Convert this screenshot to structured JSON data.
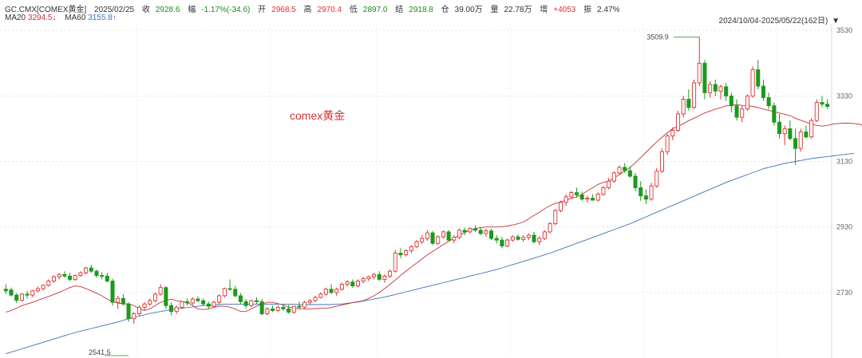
{
  "header": {
    "symbol": "GC.CMX[COMEX黄金]",
    "date": "2025/02/25",
    "close_label": "收",
    "close": "2928.6",
    "amplitude_label": "幅",
    "change": "-1.17%(-34.6)",
    "open_label": "开",
    "open": "2968.5",
    "high_label": "高",
    "high": "2970.4",
    "low_label": "低",
    "low": "2897.0",
    "settle_label": "结",
    "settle": "2918.8",
    "oi_label": "仓",
    "oi": "39.00万",
    "volume_label": "量",
    "volume": "22.78万",
    "increase_label": "增",
    "increase": "+4053",
    "swing_label": "振",
    "swing": "2.47%",
    "ma20_label": "MA20",
    "ma20": "3294.5↓",
    "ma60_label": "MA60",
    "ma60": "3155.8↑",
    "range": "2024/10/04-2025/05/22(162日)"
  },
  "colors": {
    "up": "#e03131",
    "down": "#1c9a1c",
    "ma20": "#c8323a",
    "ma60": "#3f72b8"
  },
  "chart_data": {
    "type": "candlestick",
    "ylim": [
      2530,
      3550
    ],
    "yticks": [
      "3530",
      "3330",
      "3130",
      "2930",
      "2730"
    ],
    "ytick_values": [
      3530,
      3330,
      3130,
      2930,
      2730
    ],
    "annotation": "comex黄金",
    "max_label": "3509.9",
    "min_label": "2541.5",
    "ma20_values": [
      2670,
      2675,
      2682,
      2690,
      2695,
      2700,
      2706,
      2712,
      2718,
      2724,
      2730,
      2738,
      2745,
      2750,
      2748,
      2742,
      2735,
      2728,
      2720,
      2710,
      2702,
      2698,
      2695,
      2695,
      2690,
      2680,
      2675,
      2680,
      2690,
      2700,
      2705,
      2710,
      2705,
      2702,
      2700,
      2690,
      2680,
      2678,
      2680,
      2685,
      2688,
      2688,
      2685,
      2680,
      2672,
      2672,
      2680,
      2688,
      2695,
      2700,
      2700,
      2696,
      2692,
      2685,
      2683,
      2680,
      2680,
      2680,
      2681,
      2682,
      2682,
      2684,
      2688,
      2692,
      2695,
      2699,
      2702,
      2705,
      2712,
      2720,
      2730,
      2742,
      2755,
      2768,
      2782,
      2795,
      2808,
      2820,
      2832,
      2845,
      2855,
      2866,
      2876,
      2886,
      2896,
      2905,
      2913,
      2920,
      2925,
      2928,
      2930,
      2930,
      2930,
      2931,
      2933,
      2936,
      2940,
      2945,
      2955,
      2965,
      2975,
      2986,
      2995,
      3002,
      3007,
      3012,
      3017,
      3022,
      3030,
      3040,
      3050,
      3060,
      3066,
      3070,
      3080,
      3090,
      3100,
      3112,
      3126,
      3142,
      3158,
      3174,
      3190,
      3204,
      3218,
      3230,
      3238,
      3245,
      3255,
      3262,
      3270,
      3278,
      3284,
      3290,
      3294,
      3300,
      3302,
      3304,
      3301,
      3301,
      3298,
      3295,
      3290,
      3286,
      3282,
      3278,
      3274,
      3270,
      3262,
      3256,
      3250,
      3244,
      3240,
      3238,
      3240,
      3244,
      3246,
      3247,
      3247,
      3246,
      3244,
      3238,
      3232,
      3226,
      3222,
      3220,
      3218
    ],
    "ma60_values": [
      2543,
      2548,
      2553,
      2558,
      2563,
      2568,
      2573,
      2578,
      2583,
      2588,
      2593,
      2598,
      2603,
      2608,
      2612,
      2616,
      2620,
      2624,
      2628,
      2632,
      2636,
      2640,
      2645,
      2650,
      2654,
      2658,
      2662,
      2666,
      2669,
      2672,
      2675,
      2678,
      2680,
      2682,
      2684,
      2686,
      2688,
      2690,
      2691,
      2692,
      2693,
      2694,
      2694,
      2694,
      2694,
      2694,
      2694,
      2694,
      2694,
      2694,
      2694,
      2694,
      2694,
      2694,
      2694,
      2693,
      2693,
      2693,
      2693,
      2693,
      2693,
      2693,
      2694,
      2695,
      2697,
      2699,
      2701,
      2704,
      2707,
      2710,
      2713,
      2716,
      2720,
      2724,
      2728,
      2732,
      2736,
      2740,
      2744,
      2748,
      2752,
      2756,
      2760,
      2764,
      2768,
      2772,
      2776,
      2780,
      2784,
      2788,
      2792,
      2796,
      2800,
      2805,
      2810,
      2815,
      2820,
      2825,
      2830,
      2835,
      2840,
      2845,
      2850,
      2856,
      2862,
      2868,
      2874,
      2880,
      2886,
      2892,
      2898,
      2904,
      2910,
      2916,
      2922,
      2928,
      2934,
      2940,
      2947,
      2954,
      2961,
      2968,
      2975,
      2982,
      2989,
      2996,
      3003,
      3010,
      3017,
      3024,
      3031,
      3038,
      3045,
      3052,
      3059,
      3066,
      3072,
      3078,
      3084,
      3090,
      3096,
      3102,
      3108,
      3112,
      3116,
      3120,
      3124,
      3127,
      3130,
      3133,
      3136,
      3139,
      3141,
      3143,
      3145,
      3147,
      3149,
      3151,
      3153,
      3155
    ],
    "candles_ohlc": [
      [
        2740,
        2755,
        2725,
        2735
      ],
      [
        2738,
        2745,
        2718,
        2722
      ],
      [
        2722,
        2728,
        2698,
        2706
      ],
      [
        2706,
        2728,
        2702,
        2725
      ],
      [
        2725,
        2735,
        2712,
        2722
      ],
      [
        2722,
        2738,
        2715,
        2735
      ],
      [
        2735,
        2748,
        2730,
        2742
      ],
      [
        2742,
        2755,
        2735,
        2752
      ],
      [
        2752,
        2770,
        2748,
        2765
      ],
      [
        2765,
        2782,
        2760,
        2778
      ],
      [
        2778,
        2790,
        2770,
        2785
      ],
      [
        2785,
        2795,
        2775,
        2780
      ],
      [
        2780,
        2790,
        2765,
        2770
      ],
      [
        2770,
        2785,
        2765,
        2782
      ],
      [
        2782,
        2795,
        2778,
        2790
      ],
      [
        2790,
        2808,
        2785,
        2805
      ],
      [
        2805,
        2815,
        2790,
        2795
      ],
      [
        2795,
        2800,
        2775,
        2782
      ],
      [
        2782,
        2792,
        2770,
        2780
      ],
      [
        2780,
        2790,
        2760,
        2765
      ],
      [
        2765,
        2772,
        2690,
        2700
      ],
      [
        2700,
        2720,
        2680,
        2712
      ],
      [
        2712,
        2725,
        2690,
        2695
      ],
      [
        2695,
        2700,
        2640,
        2650
      ],
      [
        2650,
        2670,
        2635,
        2665
      ],
      [
        2665,
        2690,
        2660,
        2685
      ],
      [
        2685,
        2700,
        2675,
        2695
      ],
      [
        2695,
        2712,
        2690,
        2705
      ],
      [
        2705,
        2730,
        2700,
        2725
      ],
      [
        2725,
        2755,
        2720,
        2745
      ],
      [
        2745,
        2750,
        2680,
        2690
      ],
      [
        2690,
        2700,
        2660,
        2672
      ],
      [
        2672,
        2690,
        2665,
        2685
      ],
      [
        2685,
        2705,
        2680,
        2702
      ],
      [
        2702,
        2712,
        2690,
        2698
      ],
      [
        2698,
        2715,
        2692,
        2710
      ],
      [
        2710,
        2718,
        2700,
        2705
      ],
      [
        2705,
        2712,
        2690,
        2695
      ],
      [
        2695,
        2702,
        2680,
        2688
      ],
      [
        2688,
        2705,
        2685,
        2700
      ],
      [
        2700,
        2725,
        2695,
        2720
      ],
      [
        2720,
        2745,
        2715,
        2742
      ],
      [
        2742,
        2770,
        2735,
        2740
      ],
      [
        2740,
        2750,
        2715,
        2720
      ],
      [
        2720,
        2728,
        2695,
        2702
      ],
      [
        2702,
        2710,
        2680,
        2690
      ],
      [
        2690,
        2708,
        2685,
        2705
      ],
      [
        2705,
        2715,
        2695,
        2702
      ],
      [
        2702,
        2710,
        2660,
        2665
      ],
      [
        2665,
        2685,
        2660,
        2680
      ],
      [
        2680,
        2690,
        2670,
        2675
      ],
      [
        2675,
        2690,
        2670,
        2685
      ],
      [
        2685,
        2695,
        2675,
        2680
      ],
      [
        2680,
        2692,
        2665,
        2670
      ],
      [
        2670,
        2690,
        2665,
        2688
      ],
      [
        2688,
        2702,
        2680,
        2685
      ],
      [
        2685,
        2705,
        2680,
        2700
      ],
      [
        2700,
        2710,
        2695,
        2705
      ],
      [
        2705,
        2720,
        2700,
        2715
      ],
      [
        2715,
        2730,
        2712,
        2725
      ],
      [
        2725,
        2745,
        2720,
        2740
      ],
      [
        2740,
        2755,
        2725,
        2730
      ],
      [
        2730,
        2745,
        2720,
        2740
      ],
      [
        2740,
        2760,
        2735,
        2755
      ],
      [
        2755,
        2768,
        2748,
        2762
      ],
      [
        2762,
        2770,
        2745,
        2750
      ],
      [
        2750,
        2770,
        2745,
        2765
      ],
      [
        2765,
        2778,
        2758,
        2772
      ],
      [
        2772,
        2782,
        2765,
        2778
      ],
      [
        2778,
        2790,
        2770,
        2785
      ],
      [
        2785,
        2795,
        2765,
        2770
      ],
      [
        2770,
        2785,
        2760,
        2780
      ],
      [
        2780,
        2800,
        2775,
        2795
      ],
      [
        2795,
        2860,
        2790,
        2850
      ],
      [
        2850,
        2865,
        2835,
        2845
      ],
      [
        2845,
        2862,
        2840,
        2858
      ],
      [
        2858,
        2875,
        2850,
        2870
      ],
      [
        2870,
        2890,
        2865,
        2885
      ],
      [
        2885,
        2905,
        2878,
        2895
      ],
      [
        2895,
        2920,
        2888,
        2912
      ],
      [
        2912,
        2918,
        2875,
        2880
      ],
      [
        2880,
        2905,
        2875,
        2900
      ],
      [
        2900,
        2920,
        2895,
        2915
      ],
      [
        2915,
        2920,
        2885,
        2890
      ],
      [
        2890,
        2905,
        2880,
        2898
      ],
      [
        2898,
        2925,
        2893,
        2920
      ],
      [
        2920,
        2928,
        2905,
        2915
      ],
      [
        2915,
        2930,
        2910,
        2925
      ],
      [
        2925,
        2935,
        2915,
        2920
      ],
      [
        2920,
        2930,
        2905,
        2910
      ],
      [
        2910,
        2925,
        2900,
        2918
      ],
      [
        2918,
        2925,
        2890,
        2895
      ],
      [
        2895,
        2905,
        2880,
        2890
      ],
      [
        2890,
        2900,
        2865,
        2872
      ],
      [
        2872,
        2895,
        2868,
        2890
      ],
      [
        2890,
        2905,
        2885,
        2900
      ],
      [
        2900,
        2908,
        2888,
        2892
      ],
      [
        2892,
        2905,
        2885,
        2898
      ],
      [
        2898,
        2910,
        2890,
        2905
      ],
      [
        2905,
        2915,
        2880,
        2885
      ],
      [
        2885,
        2902,
        2875,
        2895
      ],
      [
        2895,
        2920,
        2890,
        2915
      ],
      [
        2915,
        2945,
        2910,
        2940
      ],
      [
        2940,
        2985,
        2935,
        2980
      ],
      [
        2980,
        3010,
        2975,
        3005
      ],
      [
        3005,
        3030,
        2995,
        3022
      ],
      [
        3022,
        3040,
        3018,
        3035
      ],
      [
        3035,
        3050,
        3020,
        3028
      ],
      [
        3028,
        3038,
        3010,
        3015
      ],
      [
        3015,
        3025,
        3005,
        3018
      ],
      [
        3018,
        3030,
        3010,
        3012
      ],
      [
        3012,
        3035,
        3008,
        3030
      ],
      [
        3030,
        3055,
        3025,
        3050
      ],
      [
        3050,
        3080,
        3045,
        3070
      ],
      [
        3070,
        3100,
        3065,
        3095
      ],
      [
        3095,
        3118,
        3090,
        3112
      ],
      [
        3112,
        3125,
        3095,
        3102
      ],
      [
        3102,
        3115,
        3080,
        3085
      ],
      [
        3085,
        3095,
        3040,
        3050
      ],
      [
        3050,
        3070,
        3010,
        3025
      ],
      [
        3025,
        3045,
        3000,
        3015
      ],
      [
        3015,
        3065,
        3010,
        3055
      ],
      [
        3055,
        3110,
        3050,
        3100
      ],
      [
        3100,
        3170,
        3095,
        3160
      ],
      [
        3160,
        3215,
        3150,
        3208
      ],
      [
        3208,
        3235,
        3195,
        3225
      ],
      [
        3225,
        3285,
        3220,
        3275
      ],
      [
        3275,
        3330,
        3265,
        3320
      ],
      [
        3320,
        3350,
        3285,
        3295
      ],
      [
        3295,
        3380,
        3290,
        3370
      ],
      [
        3370,
        3509.9,
        3360,
        3430
      ],
      [
        3430,
        3440,
        3320,
        3340
      ],
      [
        3340,
        3375,
        3325,
        3365
      ],
      [
        3365,
        3380,
        3330,
        3345
      ],
      [
        3345,
        3365,
        3320,
        3358
      ],
      [
        3358,
        3370,
        3315,
        3330
      ],
      [
        3330,
        3340,
        3280,
        3300
      ],
      [
        3300,
        3320,
        3255,
        3265
      ],
      [
        3265,
        3300,
        3250,
        3290
      ],
      [
        3290,
        3335,
        3285,
        3330
      ],
      [
        3330,
        3420,
        3325,
        3410
      ],
      [
        3410,
        3440,
        3350,
        3360
      ],
      [
        3360,
        3380,
        3315,
        3325
      ],
      [
        3325,
        3340,
        3290,
        3300
      ],
      [
        3300,
        3310,
        3240,
        3250
      ],
      [
        3250,
        3275,
        3200,
        3215
      ],
      [
        3215,
        3240,
        3180,
        3230
      ],
      [
        3230,
        3255,
        3195,
        3200
      ],
      [
        3200,
        3230,
        3120,
        3170
      ],
      [
        3170,
        3230,
        3160,
        3220
      ],
      [
        3220,
        3240,
        3200,
        3205
      ],
      [
        3205,
        3262,
        3200,
        3255
      ],
      [
        3255,
        3320,
        3250,
        3310
      ],
      [
        3310,
        3330,
        3295,
        3305
      ],
      [
        3305,
        3320,
        3290,
        3298
      ]
    ]
  }
}
